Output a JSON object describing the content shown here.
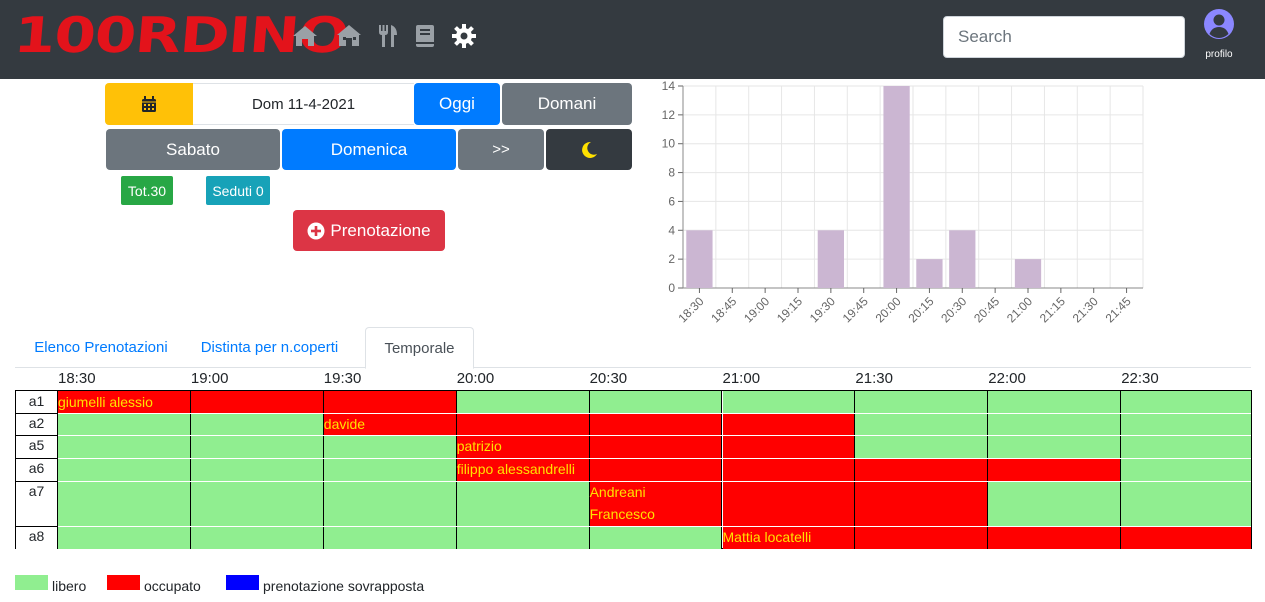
{
  "app": {
    "logo": "100RDINO",
    "search_placeholder": "Search",
    "profile_label": "profilo",
    "nav_icons": [
      "home-icon",
      "house-icon",
      "utensils-icon",
      "book-icon",
      "gear-icon"
    ]
  },
  "controls": {
    "date_label": "Dom 11-4-2021",
    "today_label": "Oggi",
    "tomorrow_label": "Domani",
    "day1_label": "Sabato",
    "day2_label": "Domenica",
    "next_label": ">>",
    "tot_badge": "Tot.30",
    "seated_badge": "Seduti 0",
    "new_booking_label": "Prenotazione"
  },
  "chart_data": {
    "type": "bar",
    "categories": [
      "18:30",
      "18:45",
      "19:00",
      "19:15",
      "19:30",
      "19:45",
      "20:00",
      "20:15",
      "20:30",
      "20:45",
      "21:00",
      "21:15",
      "21:30",
      "21:45"
    ],
    "values": [
      4,
      0,
      0,
      0,
      4,
      0,
      14,
      2,
      4,
      0,
      2,
      0,
      0,
      0
    ],
    "yticks": [
      0,
      2,
      4,
      6,
      8,
      10,
      12,
      14
    ],
    "ylim": [
      0,
      14
    ],
    "grid": true,
    "bar_color": "#cbb6d2"
  },
  "tabs": [
    {
      "label": "Elenco Prenotazioni",
      "active": false
    },
    {
      "label": "Distinta per n.coperti",
      "active": false
    },
    {
      "label": "Temporale",
      "active": true
    }
  ],
  "timeline": {
    "times": [
      "18:30",
      "19:00",
      "19:30",
      "20:00",
      "20:30",
      "21:00",
      "21:30",
      "22:00",
      "22:30"
    ],
    "rows": [
      {
        "table": "a1",
        "busy": [
          1,
          1,
          1,
          0,
          0,
          0,
          0,
          0,
          0
        ]
      },
      {
        "table": "a2",
        "busy": [
          0,
          0,
          1,
          1,
          1,
          1,
          0,
          0,
          0
        ]
      },
      {
        "table": "a5",
        "busy": [
          0,
          0,
          0,
          1,
          1,
          1,
          0,
          0,
          0
        ]
      },
      {
        "table": "a6",
        "busy": [
          0,
          0,
          0,
          1,
          1,
          1,
          1,
          1,
          0
        ]
      },
      {
        "table": "a7",
        "busy": [
          0,
          0,
          0,
          0,
          1,
          1,
          1,
          0,
          0
        ]
      },
      {
        "table": "a8",
        "busy": [
          0,
          0,
          0,
          0,
          0,
          1,
          1,
          1,
          1
        ]
      }
    ],
    "guests": [
      {
        "name": "giumelli alessio",
        "row": 0,
        "slot": 0
      },
      {
        "name": "davide",
        "row": 1,
        "slot": 2
      },
      {
        "name": "patrizio",
        "row": 2,
        "slot": 3
      },
      {
        "name": "filippo alessandrelli",
        "row": 3,
        "slot": 3
      },
      {
        "name": "Andreani",
        "row": 4,
        "slot": 4
      },
      {
        "name": "Francesco",
        "row": 4,
        "slot": 4,
        "line": 2
      },
      {
        "name": "Mattia locatelli",
        "row": 5,
        "slot": 5
      }
    ]
  },
  "legend": [
    {
      "label": "libero",
      "color": "#90ee90"
    },
    {
      "label": "occupato",
      "color": "#ff0000"
    },
    {
      "label": "prenotazione sovrapposta",
      "color": "#0000ff"
    }
  ]
}
